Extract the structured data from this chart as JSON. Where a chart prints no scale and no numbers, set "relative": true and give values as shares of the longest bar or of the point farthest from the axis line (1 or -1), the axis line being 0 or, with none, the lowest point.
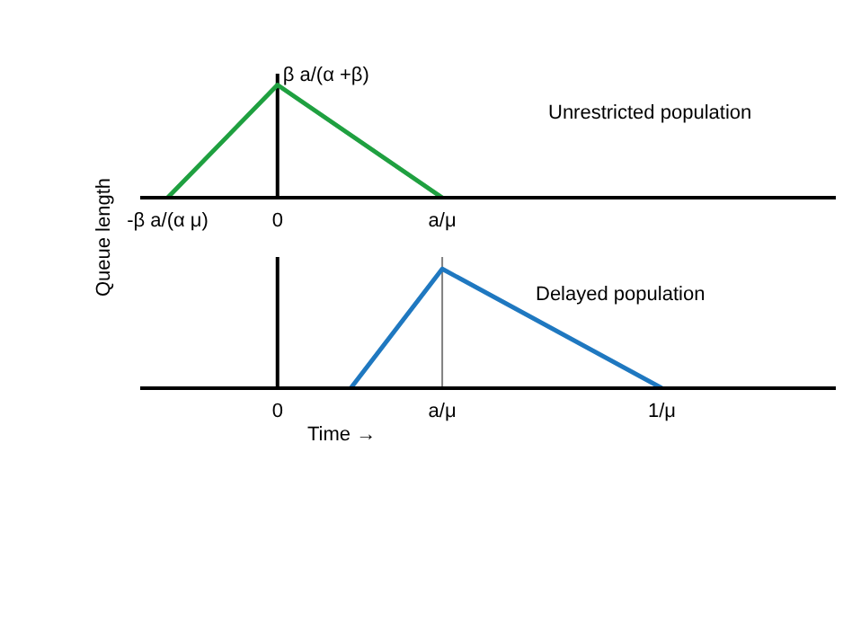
{
  "chart_data": [
    {
      "type": "line",
      "ylabel": "Queue length",
      "relative": true,
      "categories": [
        null,
        "-β a/(α μ)",
        null,
        null,
        null,
        null,
        null,
        "0",
        null,
        null,
        null,
        null,
        null,
        null,
        null,
        null,
        "a/μ",
        null,
        null,
        null,
        null,
        null,
        null,
        null,
        null,
        null,
        null,
        null,
        null,
        null,
        null,
        null,
        null,
        null,
        null,
        null,
        null,
        null
      ],
      "series": [
        {
          "name": "Unrestricted population",
          "color": "#1fa040",
          "values": [
            null,
            0,
            null,
            null,
            null,
            null,
            null,
            1,
            null,
            null,
            null,
            null,
            null,
            null,
            null,
            null,
            0,
            null,
            null,
            null,
            null,
            null,
            null,
            null,
            null,
            null,
            null,
            null,
            null,
            null,
            null,
            null,
            null,
            null,
            null,
            null,
            null,
            null
          ]
        }
      ],
      "annotations": [
        {
          "text": "β a/(α +β)",
          "x": "0",
          "y": 1
        }
      ],
      "ref_lines": [
        {
          "axis": "x",
          "value": "0",
          "color": "#000000"
        }
      ],
      "grid": false,
      "legend": false,
      "marker": "none",
      "line_style": "solid"
    },
    {
      "type": "line",
      "xlabel": "Time →",
      "relative": true,
      "categories": [
        null,
        null,
        null,
        null,
        null,
        null,
        null,
        "0",
        null,
        null,
        null,
        null,
        null,
        null,
        null,
        null,
        "a/μ",
        null,
        null,
        null,
        null,
        null,
        null,
        null,
        null,
        null,
        null,
        null,
        "1/μ",
        null,
        null,
        null,
        null,
        null,
        null,
        null,
        null,
        null
      ],
      "series": [
        {
          "name": "Delayed population",
          "color": "#1f78c0",
          "values": [
            null,
            null,
            null,
            null,
            null,
            null,
            null,
            null,
            null,
            null,
            null,
            0,
            null,
            null,
            null,
            null,
            1,
            null,
            null,
            null,
            null,
            null,
            null,
            null,
            null,
            null,
            null,
            null,
            0,
            null,
            null,
            null,
            null,
            null,
            null,
            null,
            null,
            null
          ]
        }
      ],
      "ref_lines": [
        {
          "axis": "x",
          "value": "0",
          "color": "#000000"
        },
        {
          "axis": "x",
          "value": "a/μ",
          "color": "#808080"
        }
      ],
      "grid": false,
      "legend": false,
      "marker": "none",
      "line_style": "solid"
    }
  ]
}
